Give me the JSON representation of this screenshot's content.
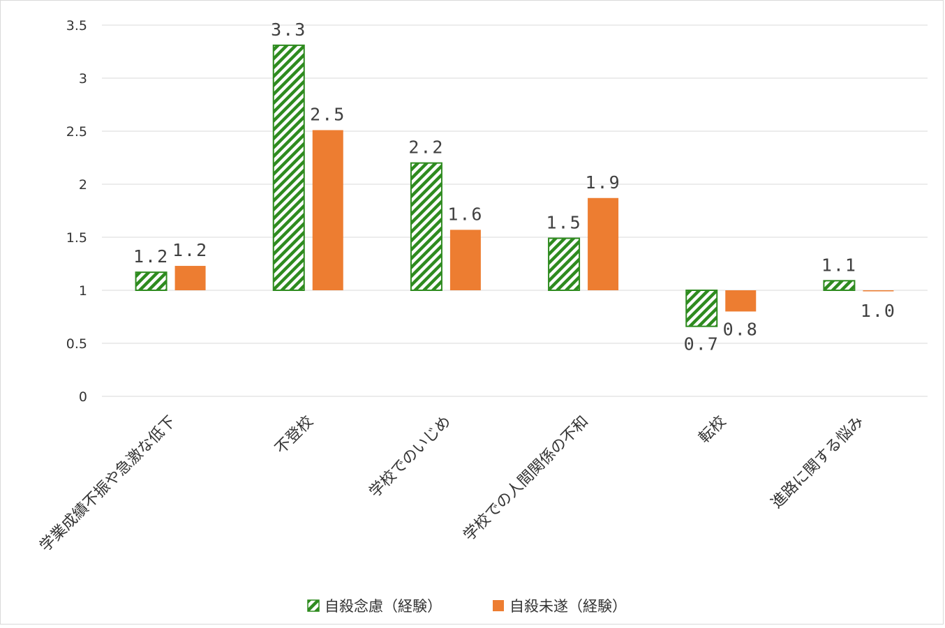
{
  "chart_data": {
    "type": "bar",
    "title": "",
    "xlabel": "",
    "ylabel": "",
    "ylim": [
      0,
      3.5
    ],
    "yticks": [
      "0",
      "0.5",
      "1",
      "1.5",
      "2",
      "2.5",
      "3",
      "3.5"
    ],
    "baseline": 1,
    "grid": true,
    "legend_position": "bottom",
    "categories": [
      "学業成績不振や急激な低下",
      "不登校",
      "学校でのいじめ",
      "学校での人間関係の不和",
      "転校",
      "進路に関する悩み"
    ],
    "series": [
      {
        "name": "自殺念慮（経験）",
        "values": [
          1.17,
          3.31,
          2.2,
          1.49,
          0.66,
          1.09
        ],
        "labels": [
          "1.2",
          "3.3",
          "2.2",
          "1.5",
          "0.7",
          "1.1"
        ],
        "color": "#2e8b1f",
        "pattern": "diagonal-stripes"
      },
      {
        "name": "自殺未遂（経験）",
        "values": [
          1.23,
          2.51,
          1.57,
          1.87,
          0.8,
          0.99
        ],
        "labels": [
          "1.2",
          "2.5",
          "1.6",
          "1.9",
          "0.8",
          "1.0"
        ],
        "color": "#ed7d31",
        "pattern": "solid"
      }
    ]
  }
}
